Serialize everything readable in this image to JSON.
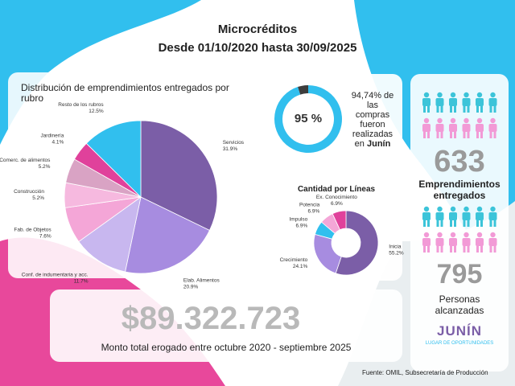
{
  "header": {
    "title": "Microcréditos",
    "subtitle": "Desde 01/10/2020 hasta 30/09/2025"
  },
  "chart_data": [
    {
      "type": "pie",
      "title": "Distribución de emprendimientos entregados por rubro",
      "categories": [
        "Servicios",
        "Elab. Alimentos",
        "Conf. de indumentaria y acc.",
        "Fab. de Objetos",
        "Construcción",
        "Comerc. de alimentos",
        "Jardinería",
        "Resto de los rubros"
      ],
      "values": [
        31.9,
        20.9,
        11.7,
        7.6,
        5.2,
        5.2,
        4.1,
        12.5
      ],
      "value_labels": [
        "31.9%",
        "20.9%",
        "11.7%",
        "7.6%",
        "5.2%",
        "5.2%",
        "4.1%",
        "12.5%"
      ],
      "colors": [
        "#7b5ea7",
        "#a78ce0",
        "#c8b7ef",
        "#f4a6d7",
        "#f6b9df",
        "#d9a3c4",
        "#e0419b",
        "#31bfee"
      ]
    },
    {
      "type": "gauge",
      "value": 95,
      "value_label": "95 %",
      "color": "#31bfee",
      "track_color": "#3d3d3d"
    },
    {
      "type": "donut",
      "title": "Cantidad por Líneas",
      "categories": [
        "Inicia",
        "Crecimiento",
        "Impulso",
        "Potencia",
        "Ex. Conocimiento"
      ],
      "values": [
        55.2,
        24.1,
        6.9,
        6.9,
        6.9
      ],
      "value_labels": [
        "55.2%",
        "24.1%",
        "6.9%",
        "6.9%",
        "6.9%"
      ],
      "colors": [
        "#7b5ea7",
        "#a78ce0",
        "#31bfee",
        "#f4a6d7",
        "#e0419b"
      ]
    }
  ],
  "compras": {
    "lines": [
      "94,74% de",
      "las",
      "compras",
      "fueron",
      "realizadas",
      "en"
    ],
    "emphasis": "Junín"
  },
  "emprendimientos": {
    "number": "633",
    "label": "Emprendimientos entregados"
  },
  "personas": {
    "number": "795",
    "label": "Personas alcanzadas"
  },
  "monto": {
    "amount": "$89.322.723",
    "label": "Monto total erogado entre octubre 2020 - septiembre 2025"
  },
  "logo": {
    "name": "JUNÍN",
    "tagline": "LUGAR DE OPORTUNIDADES"
  },
  "source": "Fuente: OMIL, Subsecretaría de Producción"
}
